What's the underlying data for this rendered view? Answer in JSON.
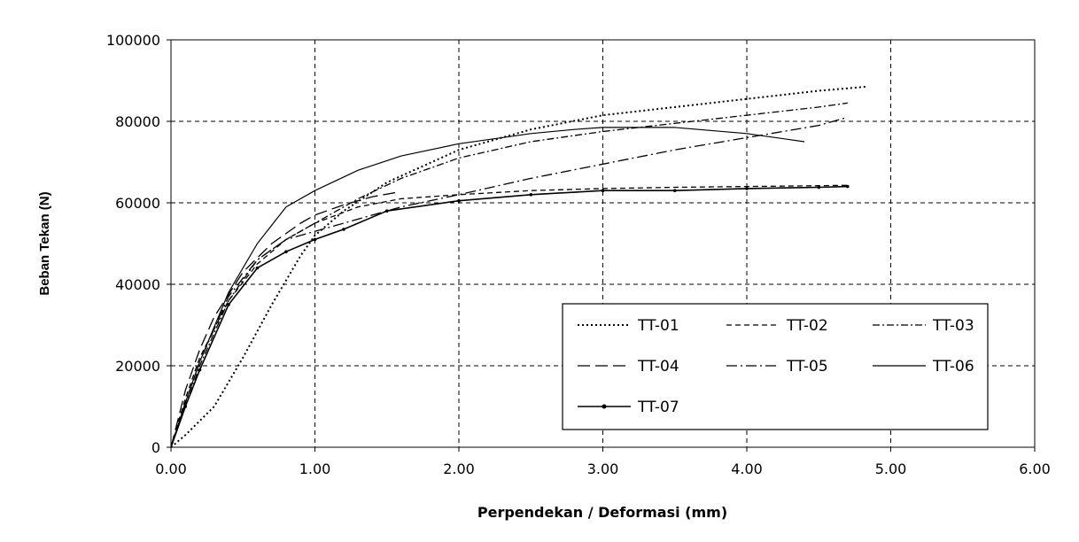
{
  "chart_data": {
    "type": "line",
    "title": "",
    "xlabel": "Perpendekan / Deformasi (mm)",
    "ylabel": "Beban Tekan (N)",
    "xlim": [
      0,
      6
    ],
    "ylim": [
      0,
      100000
    ],
    "xticks": [
      0,
      1,
      2,
      3,
      4,
      5,
      6
    ],
    "xtick_labels": [
      "0.00",
      "1.00",
      "2.00",
      "3.00",
      "4.00",
      "5.00",
      "6.00"
    ],
    "yticks": [
      0,
      20000,
      40000,
      60000,
      80000,
      100000
    ],
    "ytick_labels": [
      "0",
      "20000",
      "40000",
      "60000",
      "80000",
      "100000"
    ],
    "grid": true,
    "legend_position": "bottom-right",
    "series": [
      {
        "name": "TT-01",
        "dash": "dot",
        "x": [
          0,
          0.1,
          0.3,
          0.5,
          0.7,
          0.9,
          1.0,
          1.2,
          1.5,
          2.0,
          2.5,
          3.0,
          3.5,
          4.0,
          4.5,
          4.83
        ],
        "y": [
          0,
          3000,
          10000,
          22000,
          35000,
          47000,
          52000,
          58000,
          65000,
          73000,
          78000,
          81500,
          83500,
          85500,
          87500,
          88500
        ]
      },
      {
        "name": "TT-02",
        "dash": "dash-short",
        "x": [
          0,
          0.1,
          0.2,
          0.4,
          0.6,
          0.8,
          1.0,
          1.3,
          1.6,
          2.0,
          2.5,
          3.0,
          3.5,
          4.0,
          4.5,
          4.7
        ],
        "y": [
          0,
          12000,
          22000,
          36000,
          45000,
          51000,
          55000,
          59000,
          61000,
          62000,
          63000,
          63500,
          63800,
          64000,
          64200,
          64300
        ]
      },
      {
        "name": "TT-03",
        "dash": "dash-dot",
        "x": [
          0,
          0.1,
          0.2,
          0.4,
          0.6,
          0.8,
          1.0,
          1.3,
          1.6,
          2.0,
          2.5,
          3.0,
          3.5,
          4.0,
          4.5,
          4.7
        ],
        "y": [
          0,
          10000,
          20000,
          36000,
          46000,
          51000,
          55000,
          61000,
          66000,
          71000,
          75000,
          77500,
          79500,
          81500,
          83500,
          84500
        ]
      },
      {
        "name": "TT-04",
        "dash": "dash-long",
        "x": [
          0,
          0.1,
          0.2,
          0.3,
          0.5,
          0.7,
          0.9,
          1.0,
          1.2,
          1.4,
          1.56
        ],
        "y": [
          0,
          14000,
          24000,
          32000,
          43000,
          50000,
          55000,
          57000,
          59500,
          61500,
          62500
        ]
      },
      {
        "name": "TT-05",
        "dash": "dash-dot-long",
        "x": [
          0,
          0.1,
          0.2,
          0.4,
          0.6,
          0.8,
          1.0,
          1.3,
          1.6,
          2.0,
          2.5,
          3.0,
          3.5,
          4.0,
          4.5,
          4.7
        ],
        "y": [
          0,
          11000,
          21000,
          37000,
          46000,
          51000,
          53000,
          56000,
          59000,
          62000,
          66000,
          69500,
          73000,
          76000,
          79000,
          81000
        ]
      },
      {
        "name": "TT-06",
        "dash": "solid",
        "x": [
          0,
          0.1,
          0.2,
          0.4,
          0.6,
          0.8,
          1.0,
          1.3,
          1.6,
          2.0,
          2.5,
          2.8,
          3.0,
          3.5,
          4.0,
          4.4
        ],
        "y": [
          0,
          11000,
          21000,
          38000,
          50000,
          59000,
          63000,
          68000,
          71500,
          74500,
          77000,
          78000,
          78500,
          78500,
          77000,
          75000
        ]
      },
      {
        "name": "TT-07",
        "dash": "solid-marker",
        "x": [
          0,
          0.1,
          0.2,
          0.4,
          0.6,
          0.8,
          1.0,
          1.2,
          1.5,
          2.0,
          2.5,
          3.0,
          3.5,
          4.0,
          4.5,
          4.7
        ],
        "y": [
          0,
          10000,
          19000,
          35000,
          44000,
          48000,
          51000,
          53500,
          58000,
          60500,
          62000,
          63000,
          63000,
          63500,
          63800,
          64000
        ]
      }
    ]
  }
}
